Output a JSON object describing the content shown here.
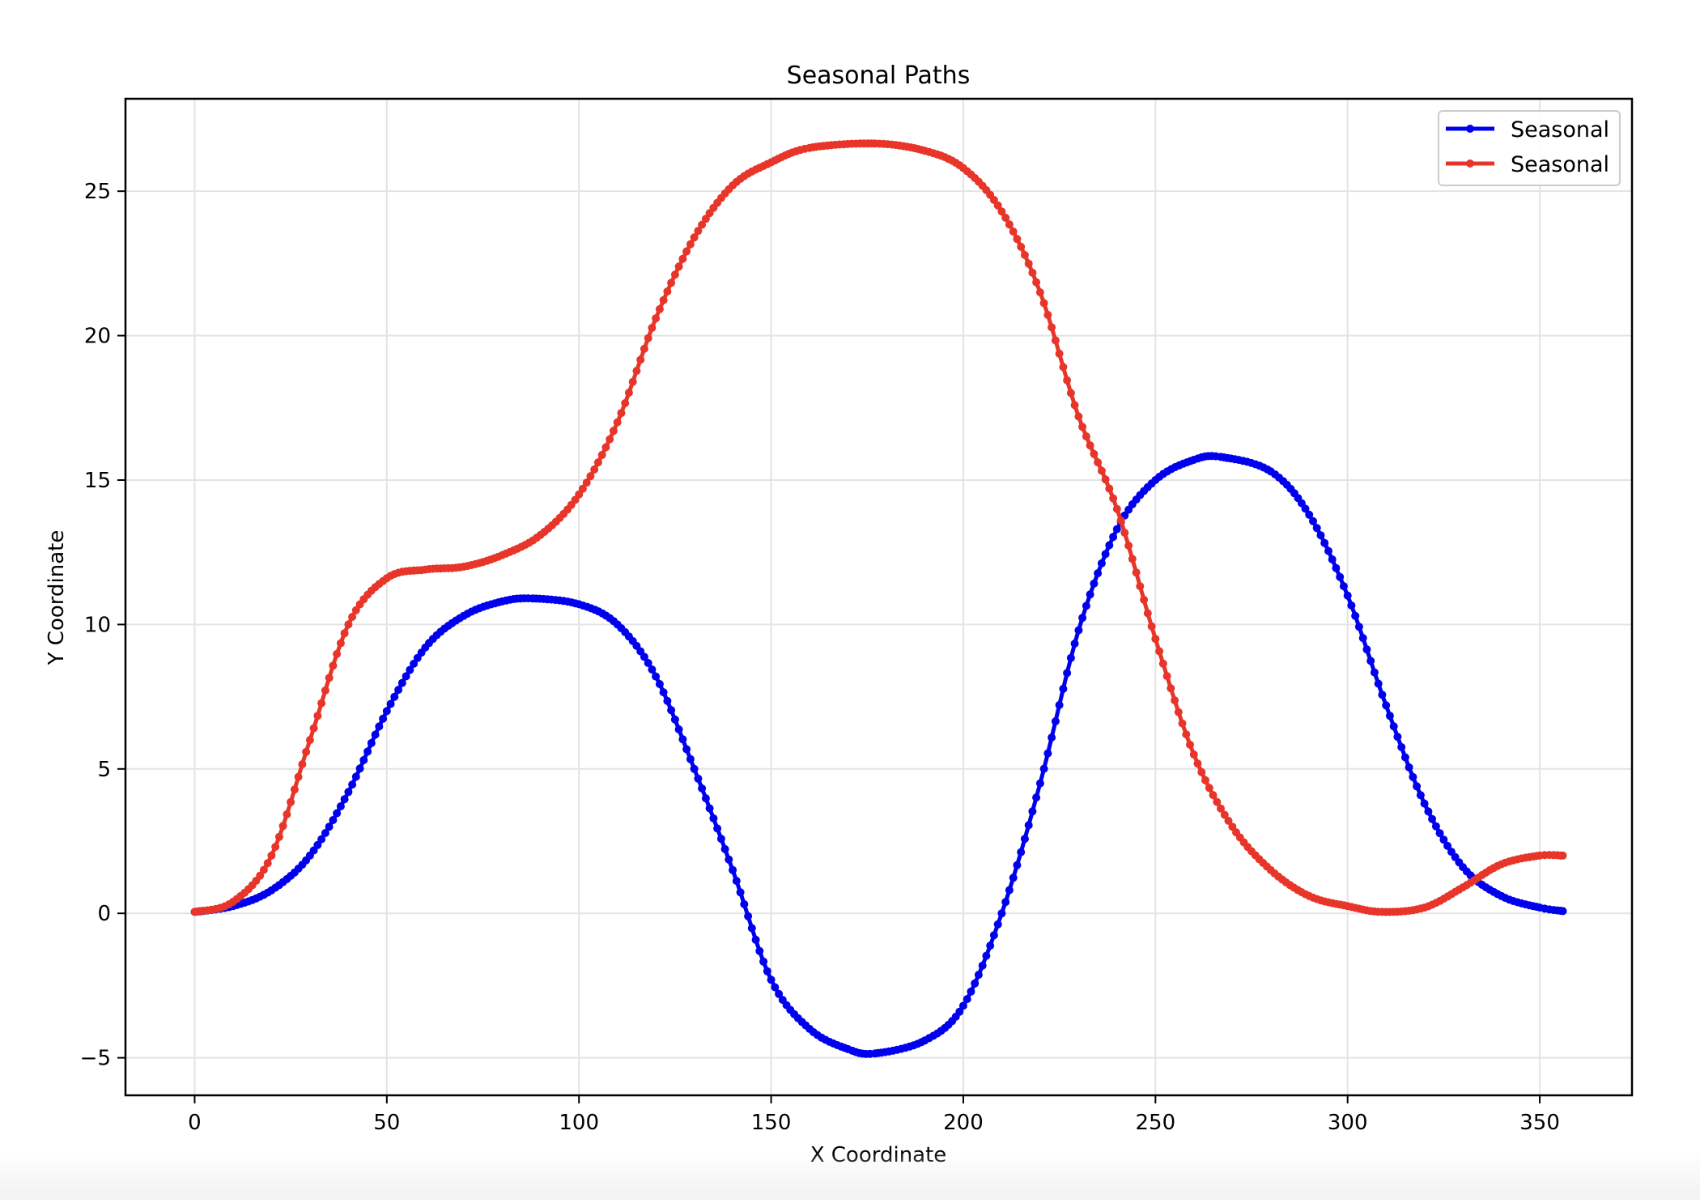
{
  "chart_data": {
    "type": "line",
    "title": "Seasonal Paths",
    "xlabel": "X Coordinate",
    "ylabel": "Y Coordinate",
    "xlim": [
      -18,
      374
    ],
    "ylim": [
      -6.3,
      28.2
    ],
    "xticks": [
      0,
      50,
      100,
      150,
      200,
      250,
      300,
      350
    ],
    "yticks": [
      -5,
      0,
      5,
      10,
      15,
      20,
      25
    ],
    "ytick_labels": [
      "−5",
      "0",
      "5",
      "10",
      "15",
      "20",
      "25"
    ],
    "grid": true,
    "legend_position": "upper right",
    "series": [
      {
        "name": "Seasonal",
        "color": "#0000ee",
        "marker": "dot",
        "x": [
          0,
          10,
          20,
          30,
          40,
          50,
          60,
          70,
          80,
          88,
          100,
          110,
          120,
          130,
          140,
          150,
          160,
          170,
          177,
          190,
          200,
          210,
          220,
          230,
          240,
          250,
          260,
          267,
          280,
          290,
          300,
          310,
          320,
          330,
          340,
          350,
          356
        ],
        "y": [
          0.05,
          0.25,
          0.8,
          2.0,
          4.2,
          7.0,
          9.2,
          10.3,
          10.8,
          10.9,
          10.7,
          10.0,
          8.2,
          5.0,
          1.5,
          -2.3,
          -4.0,
          -4.7,
          -4.85,
          -4.4,
          -3.2,
          0.0,
          4.5,
          9.8,
          13.3,
          15.0,
          15.7,
          15.8,
          15.3,
          13.8,
          11.0,
          7.2,
          3.8,
          1.6,
          0.6,
          0.2,
          0.08
        ]
      },
      {
        "name": "Seasonal",
        "color": "#e8352a",
        "marker": "dot",
        "x": [
          0,
          10,
          20,
          30,
          40,
          50,
          60,
          70,
          80,
          90,
          100,
          110,
          120,
          130,
          140,
          150,
          160,
          177,
          190,
          200,
          210,
          220,
          230,
          240,
          250,
          260,
          270,
          280,
          290,
          300,
          309,
          320,
          330,
          340,
          350,
          356
        ],
        "y": [
          0.05,
          0.4,
          2.0,
          6.0,
          10.0,
          11.6,
          11.9,
          12.0,
          12.4,
          13.1,
          14.5,
          17.0,
          20.6,
          23.4,
          25.2,
          26.0,
          26.5,
          26.65,
          26.4,
          25.8,
          24.3,
          21.5,
          17.2,
          14.0,
          9.5,
          5.5,
          3.0,
          1.5,
          0.6,
          0.25,
          0.05,
          0.2,
          0.9,
          1.7,
          2.0,
          2.0
        ]
      }
    ]
  }
}
